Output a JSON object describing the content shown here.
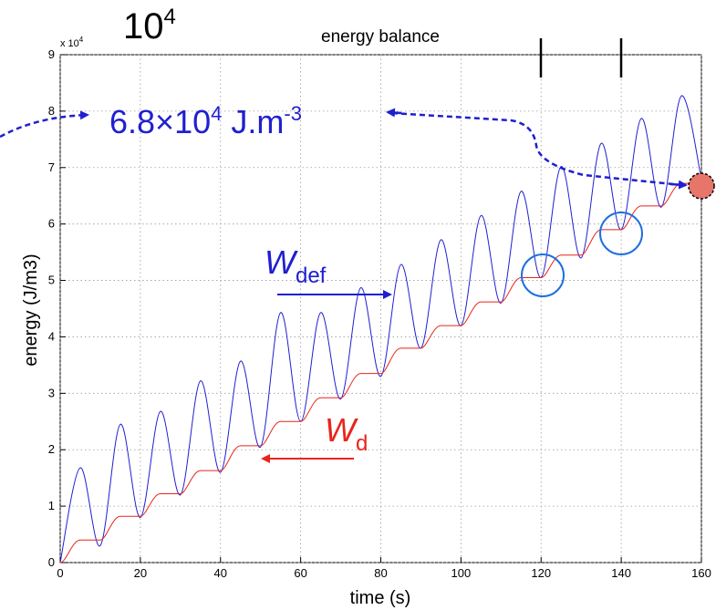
{
  "chart_data": {
    "type": "line",
    "title": "energy balance",
    "xlabel": "time (s)",
    "ylabel": "energy (J/m3)",
    "xlim": [
      0,
      160
    ],
    "ylim": [
      0,
      9
    ],
    "y_multiplier_label": "x 10",
    "y_multiplier_exp": "4",
    "xticks": [
      "0",
      "20",
      "40",
      "60",
      "80",
      "100",
      "120",
      "140",
      "160"
    ],
    "yticks": [
      "0",
      "1",
      "2",
      "3",
      "4",
      "5",
      "6",
      "7",
      "8",
      "9"
    ],
    "grid": true,
    "series": [
      {
        "name": "W_def",
        "color": "#1f1fd0",
        "x": [
          0,
          5,
          10,
          15,
          20,
          25,
          30,
          35,
          40,
          45,
          50,
          55,
          60,
          65,
          70,
          75,
          80,
          85,
          90,
          95,
          100,
          105,
          110,
          115,
          120,
          125,
          130,
          135,
          140,
          145,
          150,
          155,
          160
        ],
        "y": [
          0,
          1.68,
          0.3,
          2.45,
          0.8,
          2.68,
          1.2,
          3.22,
          1.6,
          3.57,
          2.05,
          4.43,
          2.5,
          4.43,
          2.9,
          4.87,
          3.3,
          5.28,
          3.8,
          5.72,
          4.2,
          6.15,
          4.6,
          6.58,
          5.05,
          7.02,
          5.4,
          7.43,
          5.9,
          7.87,
          6.3,
          8.27,
          6.8
        ]
      },
      {
        "name": "W_d",
        "color": "#e8251c",
        "x": [
          0,
          10,
          20,
          30,
          40,
          50,
          60,
          70,
          80,
          90,
          100,
          110,
          120,
          130,
          140,
          150,
          160
        ],
        "y": [
          0,
          0.4,
          0.82,
          1.22,
          1.63,
          2.07,
          2.5,
          2.92,
          3.35,
          3.8,
          4.2,
          4.62,
          5.05,
          5.45,
          5.9,
          6.32,
          6.72
        ]
      }
    ]
  },
  "annotations": {
    "big_label_base": "10",
    "big_label_exp": "4",
    "value_label_main": "6.8×10",
    "value_label_exp": "4",
    "value_label_unit": " J.m",
    "value_label_unit_exp": "-3",
    "wdef_label_main": "W",
    "wdef_label_sub": "def",
    "wd_label_main": "W",
    "wd_label_sub": "d",
    "blue_color": "#1f1fd0",
    "red_color": "#e8251c",
    "marker_fill": "#e8756a"
  }
}
